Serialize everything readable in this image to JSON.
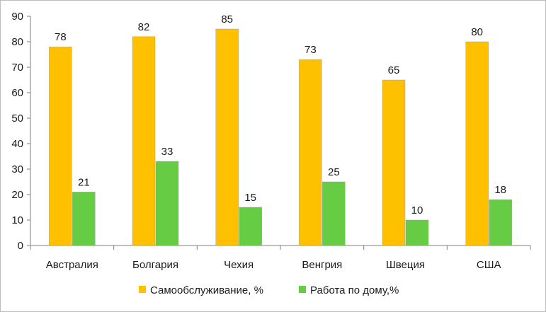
{
  "chart_data": {
    "type": "bar",
    "categories": [
      "Австралия",
      "Болгария",
      "Чехия",
      "Венгрия",
      "Швеция",
      "США"
    ],
    "series": [
      {
        "name": "Самообслуживание, %",
        "color": "#FFC000",
        "values": [
          78,
          82,
          85,
          73,
          65,
          80
        ]
      },
      {
        "name": "Работа по дому,%",
        "color": "#66CC44",
        "values": [
          21,
          33,
          15,
          25,
          10,
          18
        ]
      }
    ],
    "ylim": [
      0,
      90
    ],
    "yticks": [
      0,
      10,
      20,
      30,
      40,
      50,
      60,
      70,
      80,
      90
    ],
    "grid": false,
    "legend_position": "bottom",
    "data_labels": true
  }
}
